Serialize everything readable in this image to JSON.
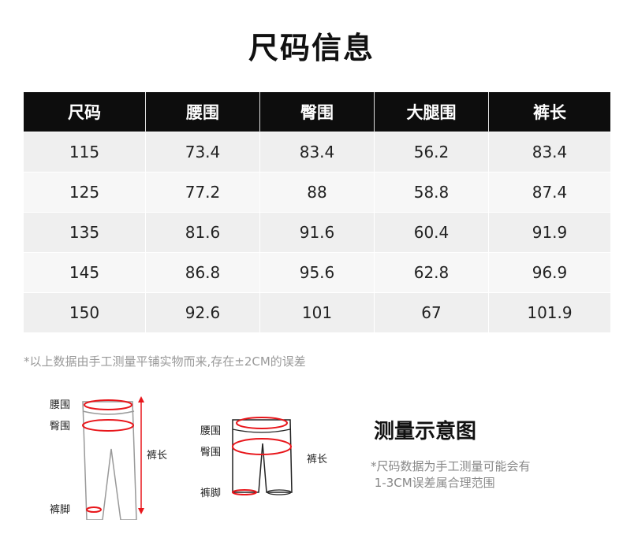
{
  "title": "尺码信息",
  "table": {
    "headers": [
      "尺码",
      "腰围",
      "臀围",
      "大腿围",
      "裤长"
    ],
    "rows": [
      [
        "115",
        "73.4",
        "83.4",
        "56.2",
        "83.4"
      ],
      [
        "125",
        "77.2",
        "88",
        "58.8",
        "87.4"
      ],
      [
        "135",
        "81.6",
        "91.6",
        "60.4",
        "91.9"
      ],
      [
        "145",
        "86.8",
        "95.6",
        "62.8",
        "96.9"
      ],
      [
        "150",
        "92.6",
        "101",
        "67",
        "101.9"
      ]
    ],
    "header_bg": "#0d0d0d",
    "row_colors": [
      "#efefef",
      "#f7f7f7"
    ]
  },
  "note": "*以上数据由手工测量平铺实物而来,存在±2CM的误差",
  "diagram": {
    "long_pants": {
      "waist": "腰围",
      "hip": "臀围",
      "length": "裤长",
      "hem": "裤脚"
    },
    "shorts": {
      "waist": "腰围",
      "hip": "臀围",
      "length": "裤长",
      "hem": "裤脚"
    },
    "accent": "#e8161b",
    "title": "测量示意图",
    "note_lines": [
      "*尺码数据为手工测量可能会有",
      " 1-3CM误差属合理范围"
    ]
  }
}
